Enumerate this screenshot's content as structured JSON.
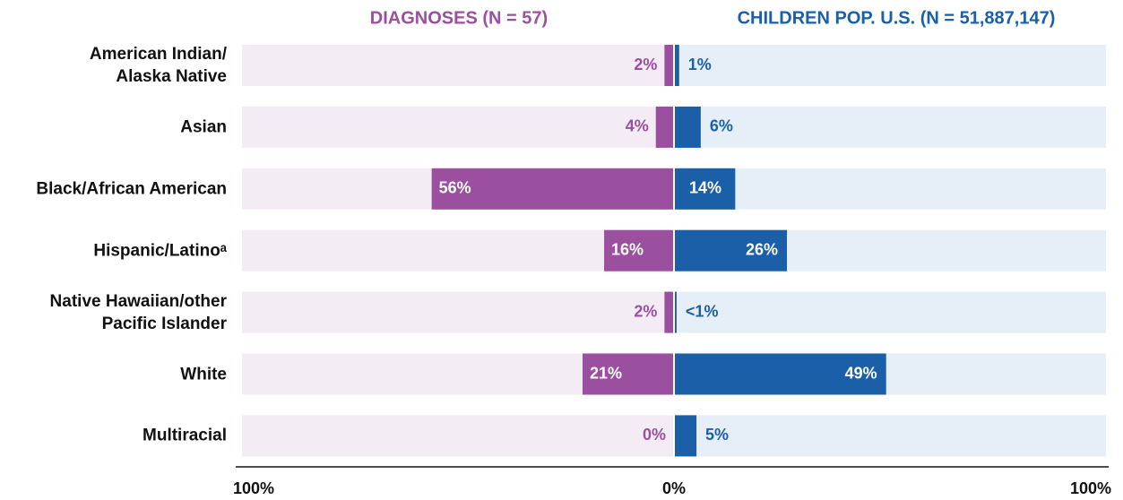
{
  "chart_data": {
    "type": "butterfly-bar",
    "categories": [
      "American Indian/\nAlaska Native",
      "Asian",
      "Black/African American",
      "Hispanic/Latinoᵃ",
      "Native Hawaiian/other\nPacific Islander",
      "White",
      "Multiracial"
    ],
    "series": [
      {
        "name": "DIAGNOSES (N = 57)",
        "color": "#9b4f9f",
        "background": "#f4ecf5",
        "values": [
          2,
          4,
          56,
          16,
          2,
          21,
          0
        ],
        "value_labels": [
          "2%",
          "4%",
          "56%",
          "16%",
          "2%",
          "21%",
          "0%"
        ]
      },
      {
        "name": "CHILDREN POP. U.S. (N = 51,887,147)",
        "color": "#1a5fa8",
        "background": "#e6eef7",
        "values": [
          1,
          6,
          14,
          26,
          0.4,
          49,
          5
        ],
        "value_labels": [
          "1%",
          "6%",
          "14%",
          "26%",
          "<1%",
          "49%",
          "5%"
        ]
      }
    ],
    "xlim": [
      -100,
      100
    ],
    "xticks": [
      {
        "value": -100,
        "label": "100%"
      },
      {
        "value": 0,
        "label": "0%"
      },
      {
        "value": 100,
        "label": "100%"
      }
    ]
  }
}
